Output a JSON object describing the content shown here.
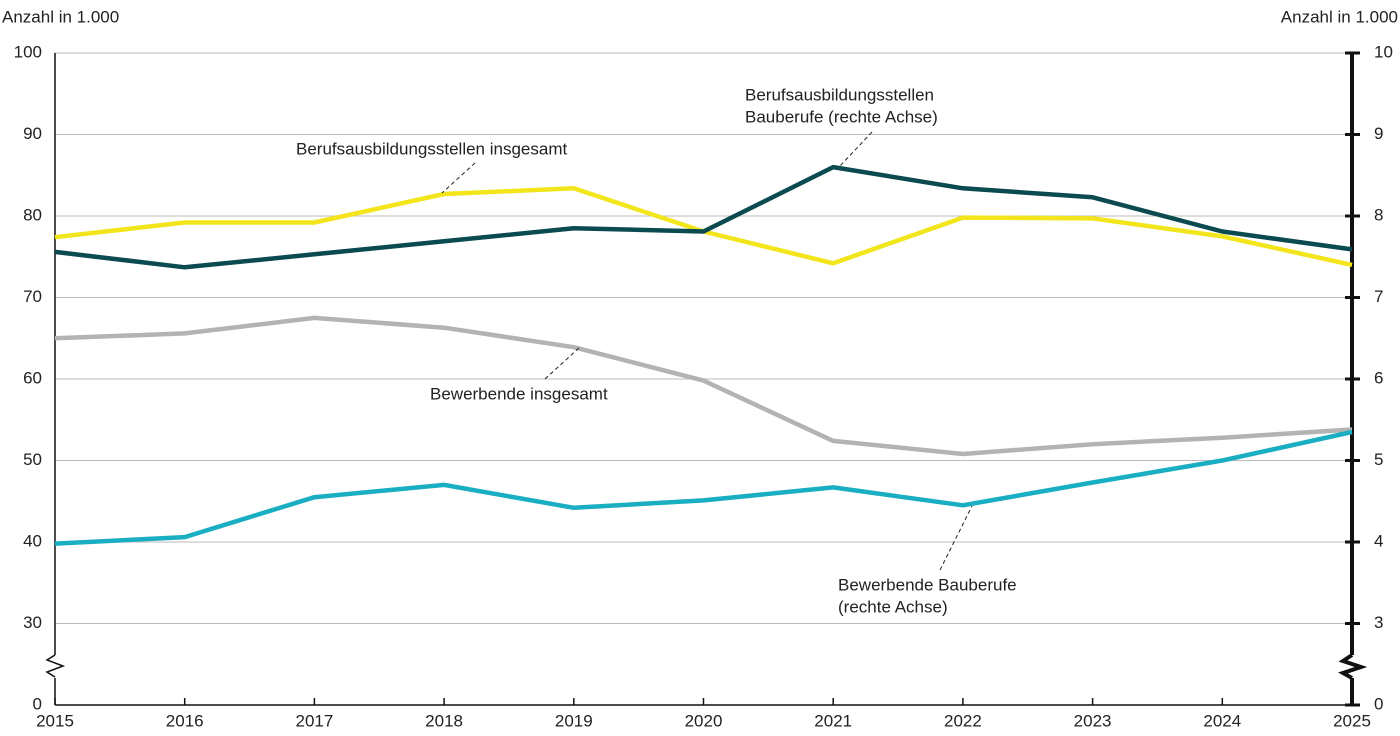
{
  "chart_data": {
    "type": "line",
    "y_axis_label": "Anzahl in 1.000",
    "y2_axis_label": "Anzahl in 1.000",
    "x": [
      2015,
      2016,
      2017,
      2018,
      2019,
      2020,
      2021,
      2022,
      2023,
      2024,
      2025
    ],
    "xlim": [
      2015,
      2025
    ],
    "xticks": [
      2015,
      2016,
      2017,
      2018,
      2019,
      2020,
      2021,
      2022,
      2023,
      2024,
      2025
    ],
    "ylim": [
      0,
      100
    ],
    "yticks": [
      0,
      30,
      40,
      50,
      60,
      70,
      80,
      90,
      100
    ],
    "y_break": [
      0,
      30
    ],
    "y2lim": [
      0,
      10
    ],
    "y2ticks": [
      0,
      3,
      4,
      5,
      6,
      7,
      8,
      9,
      10
    ],
    "y2_break": [
      0,
      3
    ],
    "grid": true,
    "series": [
      {
        "color": "#f2e51c",
        "values": [
          77.4,
          79.2,
          79.2,
          82.7,
          83.4,
          78.1,
          74.2,
          79.8,
          79.7,
          77.5,
          74.0
        ]
      },
      {
        "color": "#0b4a4f",
        "axis": "y2",
        "values": [
          7.56,
          7.37,
          7.53,
          7.69,
          7.85,
          7.81,
          8.6,
          8.34,
          8.23,
          7.81,
          7.59
        ]
      },
      {
        "color": "#b3b3b3",
        "values": [
          65.0,
          65.6,
          67.5,
          66.3,
          63.9,
          59.8,
          52.4,
          50.8,
          52.0,
          52.8,
          53.8
        ]
      },
      {
        "color": "#1aaec2",
        "axis": "y2",
        "values": [
          3.98,
          4.06,
          4.55,
          4.7,
          4.42,
          4.51,
          4.67,
          4.45,
          4.73,
          5.0,
          5.35
        ]
      }
    ],
    "annotations": [
      {
        "lines": [
          "Berufsausbildungsstellen insgesamt"
        ]
      },
      {
        "lines": [
          "Berufsausbildungsstellen",
          "Bauberufe (rechte Achse)"
        ]
      },
      {
        "lines": [
          "Bewerbende insgesamt"
        ]
      },
      {
        "lines": [
          "Bewerbende Bauberufe",
          "(rechte Achse)"
        ]
      }
    ]
  }
}
